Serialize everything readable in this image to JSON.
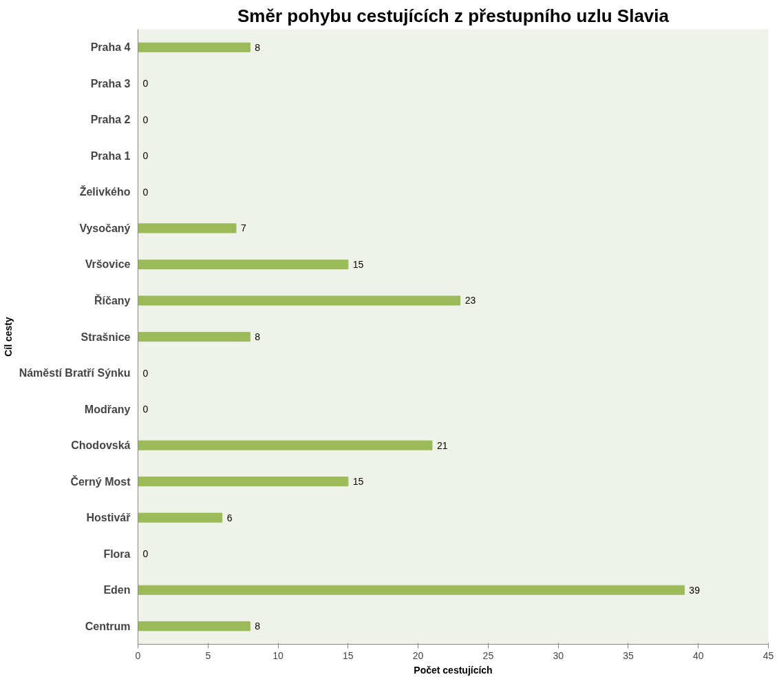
{
  "chart_data": {
    "type": "bar",
    "orientation": "horizontal",
    "title": "Směr pohybu cestujících z přestupního uzlu Slavia",
    "xlabel": "Počet cestujících",
    "ylabel": "Cíl cesty",
    "categories": [
      "Praha 4",
      "Praha 3",
      "Praha 2",
      "Praha 1",
      "Želivkého",
      "Vysočaný",
      "Vršovice",
      "Říčany",
      "Strašnice",
      "Náměstí Bratří Sýnku",
      "Modřany",
      "Chodovská",
      "Černý Most",
      "Hostivář",
      "Flora",
      "Eden",
      "Centrum"
    ],
    "values": [
      8,
      0,
      0,
      0,
      0,
      7,
      15,
      23,
      8,
      0,
      0,
      21,
      15,
      6,
      0,
      39,
      8
    ],
    "color": "#9bbb59",
    "xlim": [
      0,
      45
    ],
    "xticks": [
      0,
      5,
      10,
      15,
      20,
      25,
      30,
      35,
      40,
      45
    ],
    "grid": false,
    "data_labels": true
  }
}
